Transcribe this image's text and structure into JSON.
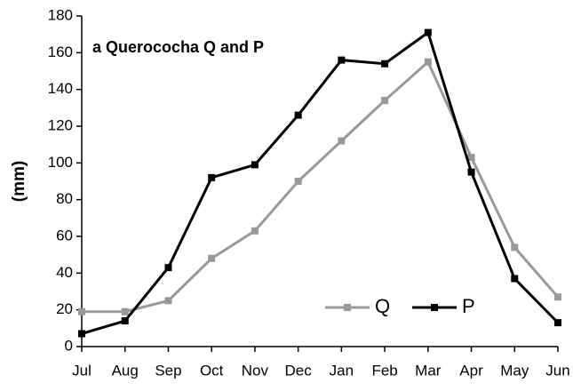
{
  "chart_data": {
    "type": "line",
    "title": "a Querococha Q and P",
    "ylabel": "(mm)",
    "categories": [
      "Jul",
      "Aug",
      "Sep",
      "Oct",
      "Nov",
      "Dec",
      "Jan",
      "Feb",
      "Mar",
      "Apr",
      "May",
      "Jun"
    ],
    "series": [
      {
        "name": "Q",
        "color": "#999999",
        "values": [
          19,
          19,
          25,
          48,
          63,
          90,
          112,
          134,
          155,
          103,
          54,
          27
        ]
      },
      {
        "name": "P",
        "color": "#000000",
        "values": [
          7,
          14,
          43,
          92,
          99,
          126,
          156,
          154,
          171,
          95,
          37,
          13
        ]
      }
    ],
    "ylim": [
      0,
      180
    ],
    "yticks": [
      0,
      20,
      40,
      60,
      80,
      100,
      120,
      140,
      160,
      180
    ],
    "grid": false,
    "legend": "lower right"
  }
}
